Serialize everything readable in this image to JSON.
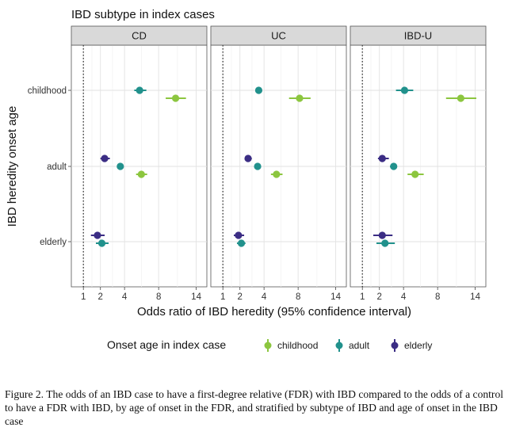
{
  "chart_data": {
    "type": "scatter",
    "subtitle": "IBD subtype in index cases",
    "xlabel": "Odds ratio of IBD heredity (95% confidence interval)",
    "ylabel": "IBD heredity onset age",
    "x_scale": "sqrt",
    "xlim": [
      0.5,
      16
    ],
    "x_ticks": [
      1,
      2,
      4,
      8,
      14
    ],
    "reference_line_x": 1,
    "grid": true,
    "panels": [
      "CD",
      "UC",
      "IBD-U"
    ],
    "rows": [
      "childhood",
      "adult",
      "elderly"
    ],
    "legend": {
      "title": "Onset age in index case",
      "position": "bottom",
      "entries": [
        {
          "name": "childhood",
          "color": "#8CC63F"
        },
        {
          "name": "adult",
          "color": "#21918C"
        },
        {
          "name": "elderly",
          "color": "#3B2D84"
        }
      ]
    },
    "series": [
      {
        "name": "childhood",
        "color": "#8CC63F",
        "points": [
          {
            "panel": "CD",
            "row": "childhood",
            "or": 10.5,
            "lo": 9.0,
            "hi": 12.2
          },
          {
            "panel": "CD",
            "row": "adult",
            "or": 5.8,
            "lo": 5.2,
            "hi": 6.5
          },
          {
            "panel": "UC",
            "row": "childhood",
            "or": 8.2,
            "lo": 6.8,
            "hi": 9.8
          },
          {
            "panel": "UC",
            "row": "adult",
            "or": 5.3,
            "lo": 4.7,
            "hi": 6.0
          },
          {
            "panel": "IBD-U",
            "row": "childhood",
            "or": 11.5,
            "lo": 9.2,
            "hi": 14.2
          },
          {
            "panel": "IBD-U",
            "row": "adult",
            "or": 5.2,
            "lo": 4.4,
            "hi": 6.2
          }
        ]
      },
      {
        "name": "adult",
        "color": "#21918C",
        "points": [
          {
            "panel": "CD",
            "row": "childhood",
            "or": 5.6,
            "lo": 5.0,
            "hi": 6.4
          },
          {
            "panel": "CD",
            "row": "adult",
            "or": 3.6,
            "lo": 3.4,
            "hi": 3.8
          },
          {
            "panel": "CD",
            "row": "elderly",
            "or": 2.1,
            "lo": 1.7,
            "hi": 2.6
          },
          {
            "panel": "UC",
            "row": "childhood",
            "or": 3.5,
            "lo": 3.2,
            "hi": 3.8
          },
          {
            "panel": "UC",
            "row": "adult",
            "or": 3.4,
            "lo": 3.2,
            "hi": 3.6
          },
          {
            "panel": "UC",
            "row": "elderly",
            "or": 2.1,
            "lo": 1.8,
            "hi": 2.4
          },
          {
            "panel": "IBD-U",
            "row": "childhood",
            "or": 4.1,
            "lo": 3.3,
            "hi": 5.0
          },
          {
            "panel": "IBD-U",
            "row": "adult",
            "or": 3.1,
            "lo": 2.8,
            "hi": 3.4
          },
          {
            "panel": "IBD-U",
            "row": "elderly",
            "or": 2.4,
            "lo": 1.8,
            "hi": 3.2
          }
        ]
      },
      {
        "name": "elderly",
        "color": "#3B2D84",
        "points": [
          {
            "panel": "CD",
            "row": "adult",
            "or": 2.3,
            "lo": 2.0,
            "hi": 2.7
          },
          {
            "panel": "CD",
            "row": "elderly",
            "or": 1.8,
            "lo": 1.4,
            "hi": 2.3
          },
          {
            "panel": "UC",
            "row": "adult",
            "or": 2.6,
            "lo": 2.4,
            "hi": 2.9
          },
          {
            "panel": "UC",
            "row": "elderly",
            "or": 1.9,
            "lo": 1.6,
            "hi": 2.3
          },
          {
            "panel": "IBD-U",
            "row": "adult",
            "or": 2.2,
            "lo": 1.9,
            "hi": 2.7
          },
          {
            "panel": "IBD-U",
            "row": "elderly",
            "or": 2.2,
            "lo": 1.6,
            "hi": 3.0
          }
        ]
      }
    ]
  },
  "caption": "Figure 2. The odds of an IBD case to have a first-degree relative (FDR) with IBD compared to the odds of a control to have a FDR with IBD, by age of onset in the FDR, and stratified by subtype of IBD and age of onset in the IBD case"
}
